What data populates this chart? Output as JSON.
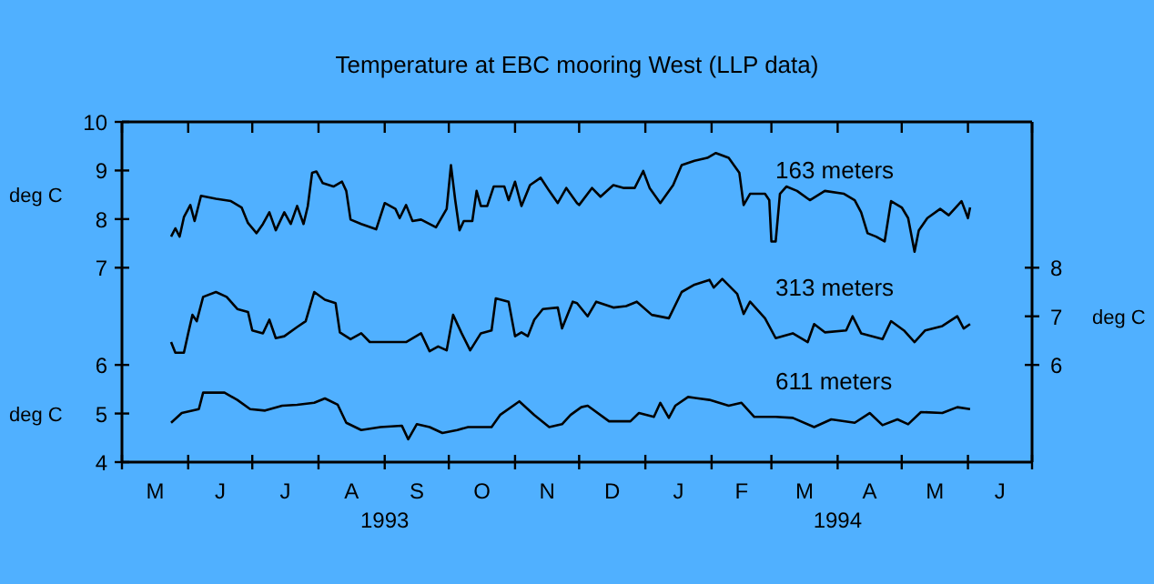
{
  "chart_data": {
    "type": "line",
    "title": "Temperature at EBC mooring West (LLP data)",
    "ylabel": "deg C",
    "y2label": "deg C",
    "y3label": "deg C",
    "grid": false,
    "xlim": [
      "1993-05-01",
      "1994-07-01"
    ],
    "xticks": [
      {
        "value": "1993-05-01",
        "label": null
      },
      {
        "value": "1993-06-01",
        "label": null
      },
      {
        "value": "1993-07-01",
        "label": null
      },
      {
        "value": "1993-08-01",
        "label": null
      },
      {
        "value": "1993-09-01",
        "label": null
      },
      {
        "value": "1993-10-01",
        "label": null
      },
      {
        "value": "1993-11-01",
        "label": null
      },
      {
        "value": "1993-12-01",
        "label": null
      },
      {
        "value": "1994-01-01",
        "label": null
      },
      {
        "value": "1994-02-01",
        "label": null
      },
      {
        "value": "1994-03-01",
        "label": null
      },
      {
        "value": "1994-04-01",
        "label": null
      },
      {
        "value": "1994-05-01",
        "label": null
      },
      {
        "value": "1994-06-01",
        "label": null
      },
      {
        "value": "1994-07-01",
        "label": null
      },
      {
        "value": "1993-09-01",
        "label": "1993"
      },
      {
        "value": "1994-04-01",
        "label": "1994"
      }
    ],
    "annotations": [
      "M",
      "J",
      "J",
      "A",
      "S",
      "O",
      "N",
      "D",
      "J",
      "F",
      "M",
      "A",
      "M",
      "J"
    ],
    "ylim": [
      3,
      10
    ],
    "yticks": [
      7,
      8,
      9,
      10
    ],
    "y2lim": [
      4,
      11
    ],
    "y2ticks": [
      6,
      7,
      8
    ],
    "y3lim": [
      4,
      11
    ],
    "y3ticks": [
      4,
      5,
      6
    ],
    "series": [
      {
        "name": "163 meters",
        "color": "#000000",
        "axis": "y",
        "x": [
          "1993-05-24",
          "1993-05-26",
          "1993-05-28",
          "1993-05-30",
          "1993-06-02",
          "1993-06-04",
          "1993-06-07",
          "1993-06-14",
          "1993-06-21",
          "1993-06-26",
          "1993-06-29",
          "1993-07-03",
          "1993-07-06",
          "1993-07-09",
          "1993-07-12",
          "1993-07-16",
          "1993-07-19",
          "1993-07-22",
          "1993-07-25",
          "1993-07-27",
          "1993-07-29",
          "1993-07-31",
          "1993-08-03",
          "1993-08-08",
          "1993-08-12",
          "1993-08-14",
          "1993-08-16",
          "1993-08-21",
          "1993-08-28",
          "1993-09-01",
          "1993-09-06",
          "1993-09-08",
          "1993-09-11",
          "1993-09-14",
          "1993-09-18",
          "1993-09-25",
          "1993-09-30",
          "1993-10-02",
          "1993-10-04",
          "1993-10-06",
          "1993-10-08",
          "1993-10-12",
          "1993-10-14",
          "1993-10-16",
          "1993-10-19",
          "1993-10-22",
          "1993-10-27",
          "1993-10-29",
          "1993-11-01",
          "1993-11-04",
          "1993-11-08",
          "1993-11-13",
          "1993-11-17",
          "1993-11-21",
          "1993-11-25",
          "1993-11-30",
          "1993-12-01",
          "1993-12-07",
          "1993-12-11",
          "1993-12-17",
          "1993-12-22",
          "1993-12-27",
          "1993-12-31",
          "1994-01-03",
          "1994-01-08",
          "1994-01-14",
          "1994-01-18",
          "1994-01-24",
          "1994-01-30",
          "1994-02-03",
          "1994-02-09",
          "1994-02-14",
          "1994-02-16",
          "1994-02-19",
          "1994-02-26",
          "1994-02-28",
          "1994-03-01",
          "1994-03-03",
          "1994-03-05",
          "1994-03-08",
          "1994-03-13",
          "1994-03-19",
          "1994-03-26",
          "1994-04-04",
          "1994-04-09",
          "1994-04-12",
          "1994-04-15",
          "1994-04-19",
          "1994-04-23",
          "1994-04-26",
          "1994-05-01",
          "1994-05-04",
          "1994-05-07",
          "1994-05-09",
          "1994-05-13",
          "1994-05-19",
          "1994-05-23",
          "1994-05-29",
          "1994-06-01",
          "1994-06-02"
        ],
        "values": [
          7.64,
          7.81,
          7.64,
          8.04,
          8.29,
          7.96,
          8.48,
          8.42,
          8.37,
          8.24,
          7.92,
          7.71,
          7.9,
          8.14,
          7.77,
          8.14,
          7.9,
          8.27,
          7.9,
          8.27,
          8.95,
          8.98,
          8.74,
          8.67,
          8.77,
          8.58,
          7.99,
          7.9,
          7.79,
          8.33,
          8.21,
          8.02,
          8.29,
          7.96,
          7.99,
          7.83,
          8.21,
          9.11,
          8.39,
          7.77,
          7.96,
          7.96,
          8.58,
          8.27,
          8.27,
          8.67,
          8.67,
          8.39,
          8.77,
          8.27,
          8.7,
          8.85,
          8.58,
          8.33,
          8.64,
          8.33,
          8.29,
          8.64,
          8.46,
          8.7,
          8.64,
          8.64,
          8.99,
          8.64,
          8.33,
          8.7,
          9.11,
          9.2,
          9.26,
          9.36,
          9.26,
          8.95,
          8.29,
          8.52,
          8.52,
          8.39,
          7.54,
          7.54,
          8.52,
          8.67,
          8.58,
          8.39,
          8.58,
          8.52,
          8.39,
          8.14,
          7.71,
          7.64,
          7.54,
          8.37,
          8.24,
          8.02,
          7.33,
          7.77,
          8.02,
          8.21,
          8.08,
          8.37,
          8.02,
          8.24
        ]
      },
      {
        "name": "313 meters",
        "color": "#000000",
        "axis": "y2",
        "x": [
          "1993-05-24",
          "1993-05-26",
          "1993-05-30",
          "1993-06-01",
          "1993-06-03",
          "1993-06-05",
          "1993-06-08",
          "1993-06-14",
          "1993-06-19",
          "1993-06-24",
          "1993-06-29",
          "1993-07-01",
          "1993-07-06",
          "1993-07-09",
          "1993-07-12",
          "1993-07-16",
          "1993-07-22",
          "1993-07-26",
          "1993-07-30",
          "1993-08-04",
          "1993-08-09",
          "1993-08-11",
          "1993-08-16",
          "1993-08-21",
          "1993-08-25",
          "1993-09-02",
          "1993-09-11",
          "1993-09-18",
          "1993-09-22",
          "1993-09-26",
          "1993-09-30",
          "1993-10-03",
          "1993-10-07",
          "1993-10-11",
          "1993-10-16",
          "1993-10-21",
          "1993-10-23",
          "1993-10-29",
          "1993-11-01",
          "1993-11-04",
          "1993-11-07",
          "1993-11-10",
          "1993-11-14",
          "1993-11-21",
          "1993-11-23",
          "1993-11-28",
          "1993-11-30",
          "1993-12-05",
          "1993-12-09",
          "1993-12-17",
          "1993-12-23",
          "1993-12-28",
          "1994-01-04",
          "1994-01-12",
          "1994-01-18",
          "1994-01-24",
          "1994-01-31",
          "1994-02-02",
          "1994-02-06",
          "1994-02-13",
          "1994-02-16",
          "1994-02-19",
          "1994-02-26",
          "1994-03-03",
          "1994-03-11",
          "1994-03-18",
          "1994-03-21",
          "1994-03-26",
          "1994-04-05",
          "1994-04-08",
          "1994-04-12",
          "1994-04-22",
          "1994-04-26",
          "1994-05-02",
          "1994-05-07",
          "1994-05-12",
          "1994-05-20",
          "1994-05-27",
          "1994-05-30",
          "1994-06-02"
        ],
        "values": [
          6.47,
          6.25,
          6.25,
          6.65,
          7.03,
          6.9,
          7.4,
          7.5,
          7.4,
          7.15,
          7.09,
          6.71,
          6.65,
          6.93,
          6.55,
          6.59,
          6.78,
          6.9,
          7.5,
          7.34,
          7.27,
          6.67,
          6.53,
          6.65,
          6.47,
          6.47,
          6.47,
          6.65,
          6.28,
          6.38,
          6.3,
          7.03,
          6.65,
          6.3,
          6.65,
          6.71,
          7.37,
          7.3,
          6.59,
          6.67,
          6.59,
          6.93,
          7.15,
          7.18,
          6.75,
          7.3,
          7.27,
          7.0,
          7.3,
          7.18,
          7.21,
          7.3,
          7.03,
          6.96,
          7.5,
          7.65,
          7.75,
          7.59,
          7.77,
          7.46,
          7.05,
          7.3,
          6.96,
          6.55,
          6.65,
          6.47,
          6.84,
          6.67,
          6.71,
          7.0,
          6.65,
          6.53,
          6.9,
          6.71,
          6.47,
          6.71,
          6.8,
          7.0,
          6.75,
          6.84
        ]
      },
      {
        "name": "611 meters",
        "color": "#000000",
        "axis": "y3",
        "x": [
          "1993-05-24",
          "1993-05-29",
          "1993-06-06",
          "1993-06-08",
          "1993-06-18",
          "1993-06-24",
          "1993-06-30",
          "1993-07-07",
          "1993-07-15",
          "1993-07-22",
          "1993-07-30",
          "1993-08-04",
          "1993-08-10",
          "1993-08-14",
          "1993-08-21",
          "1993-08-30",
          "1993-09-09",
          "1993-09-12",
          "1993-09-16",
          "1993-09-22",
          "1993-09-28",
          "1993-10-05",
          "1993-10-10",
          "1993-10-21",
          "1993-10-25",
          "1993-11-03",
          "1993-11-10",
          "1993-11-17",
          "1993-11-23",
          "1993-11-27",
          "1993-12-02",
          "1993-12-05",
          "1993-12-15",
          "1993-12-25",
          "1993-12-29",
          "1994-01-05",
          "1994-01-08",
          "1994-01-12",
          "1994-01-15",
          "1994-01-21",
          "1994-01-31",
          "1994-02-09",
          "1994-02-15",
          "1994-02-21",
          "1994-03-03",
          "1994-03-11",
          "1994-03-21",
          "1994-03-29",
          "1994-04-09",
          "1994-04-16",
          "1994-04-22",
          "1994-04-29",
          "1994-05-04",
          "1994-05-10",
          "1994-05-20",
          "1994-05-27",
          "1994-06-02"
        ],
        "values": [
          4.81,
          5.01,
          5.09,
          5.43,
          5.43,
          5.28,
          5.09,
          5.06,
          5.16,
          5.18,
          5.22,
          5.31,
          5.18,
          4.81,
          4.66,
          4.72,
          4.75,
          4.47,
          4.78,
          4.72,
          4.6,
          4.66,
          4.72,
          4.72,
          4.97,
          5.25,
          4.97,
          4.72,
          4.78,
          4.97,
          5.13,
          5.16,
          4.84,
          4.84,
          5.01,
          4.93,
          5.22,
          4.91,
          5.16,
          5.34,
          5.28,
          5.16,
          5.22,
          4.93,
          4.93,
          4.91,
          4.72,
          4.88,
          4.81,
          5.01,
          4.76,
          4.88,
          4.78,
          5.03,
          5.01,
          5.13,
          5.09
        ]
      }
    ]
  }
}
